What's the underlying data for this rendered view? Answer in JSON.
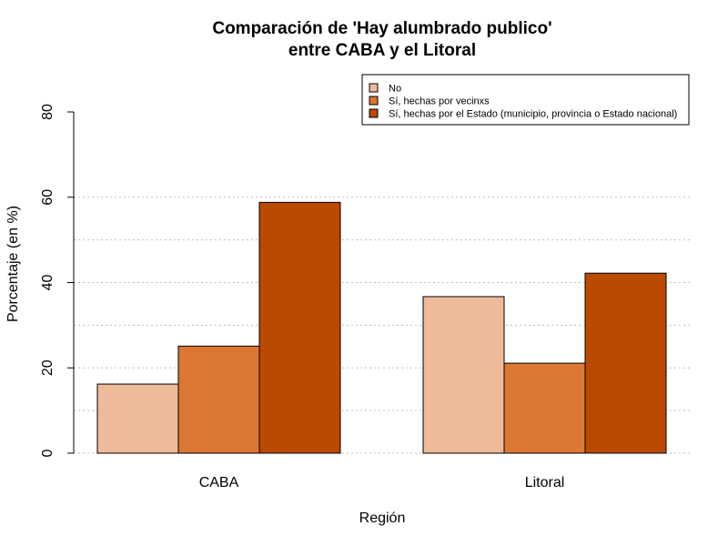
{
  "chart_data": {
    "type": "bar",
    "title": "Comparación de 'Hay alumbrado publico'",
    "subtitle": "entre CABA y el Litoral",
    "xlabel": "Región",
    "ylabel": "Porcentaje (en %)",
    "categories": [
      "CABA",
      "Litoral"
    ],
    "series": [
      {
        "name": "No",
        "color": "#EDBB99",
        "values": [
          16.2,
          36.7
        ]
      },
      {
        "name": "Sí, hechas por vecinxs",
        "color": "#DC7633",
        "values": [
          25.1,
          21.1
        ]
      },
      {
        "name": "Sí, hechas por el Estado (municipio, provincia o Estado nacional)",
        "color": "#BA4A00",
        "values": [
          58.8,
          42.2
        ]
      }
    ],
    "ylim": [
      0,
      80
    ],
    "yticks": [
      0,
      20,
      40,
      60,
      80
    ],
    "grid": true,
    "grid_lines": [
      10,
      20,
      30,
      40,
      50,
      60
    ],
    "legend_position": "top-right"
  }
}
